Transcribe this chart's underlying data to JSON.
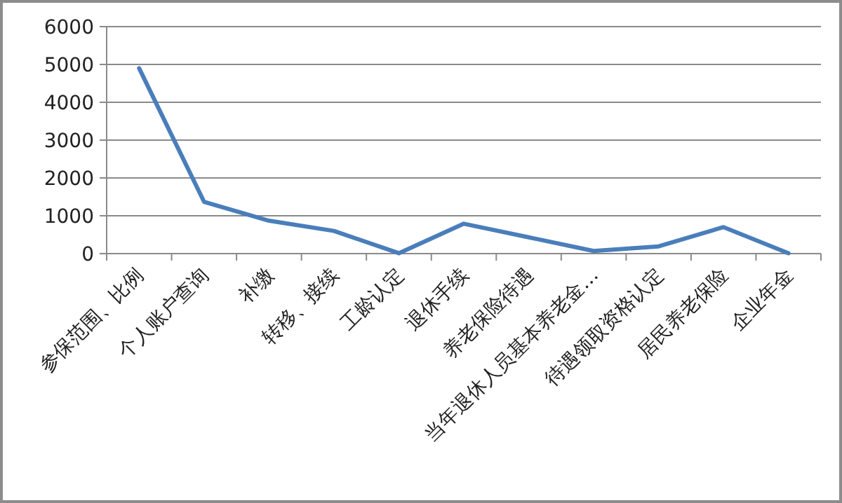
{
  "chart_data": {
    "type": "line",
    "categories": [
      "参保范围、比例",
      "个人账户查询",
      "补缴",
      "转移、接续",
      "工龄认定",
      "退休手续",
      "养老保险待遇",
      "当年退休人员基本养老金…",
      "待遇领取资格认定",
      "居民养老保险",
      "企业年金"
    ],
    "series": [
      {
        "color": "#4a7ebb",
        "values": [
          4900,
          1370,
          870,
          600,
          10,
          790,
          430,
          70,
          190,
          700,
          10
        ]
      }
    ],
    "ylim": [
      0,
      6000
    ],
    "yticks": [
      0,
      1000,
      2000,
      3000,
      4000,
      5000,
      6000
    ],
    "grid": "y",
    "marker": "none",
    "line_style": "solid"
  }
}
